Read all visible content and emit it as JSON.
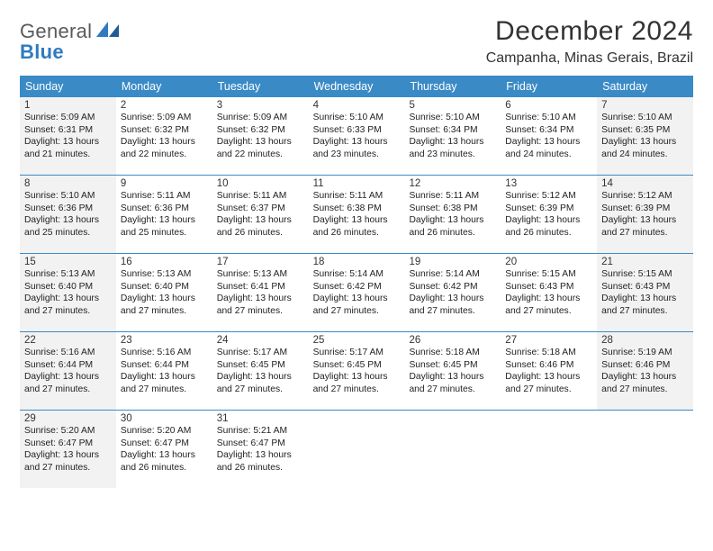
{
  "branding": {
    "logo_word1": "General",
    "logo_word2": "Blue",
    "logo_color_text": "#5a5a5a",
    "logo_color_accent": "#2f7bbf"
  },
  "header": {
    "month_title": "December 2024",
    "location": "Campanha, Minas Gerais, Brazil"
  },
  "styling": {
    "header_bg": "#3a8ac6",
    "header_text": "#ffffff",
    "row_divider": "#3a8ac6",
    "shade_bg": "#f2f2f2",
    "page_bg": "#ffffff",
    "body_text": "#222222",
    "daynum_text": "#333333",
    "title_fontsize": 30,
    "location_fontsize": 16,
    "dayhead_fontsize": 12.5,
    "cell_fontsize": 10.3
  },
  "day_headers": [
    "Sunday",
    "Monday",
    "Tuesday",
    "Wednesday",
    "Thursday",
    "Friday",
    "Saturday"
  ],
  "weeks": [
    [
      {
        "n": "1",
        "shade": true,
        "sr": "Sunrise: 5:09 AM",
        "ss": "Sunset: 6:31 PM",
        "d1": "Daylight: 13 hours",
        "d2": "and 21 minutes."
      },
      {
        "n": "2",
        "shade": false,
        "sr": "Sunrise: 5:09 AM",
        "ss": "Sunset: 6:32 PM",
        "d1": "Daylight: 13 hours",
        "d2": "and 22 minutes."
      },
      {
        "n": "3",
        "shade": false,
        "sr": "Sunrise: 5:09 AM",
        "ss": "Sunset: 6:32 PM",
        "d1": "Daylight: 13 hours",
        "d2": "and 22 minutes."
      },
      {
        "n": "4",
        "shade": false,
        "sr": "Sunrise: 5:10 AM",
        "ss": "Sunset: 6:33 PM",
        "d1": "Daylight: 13 hours",
        "d2": "and 23 minutes."
      },
      {
        "n": "5",
        "shade": false,
        "sr": "Sunrise: 5:10 AM",
        "ss": "Sunset: 6:34 PM",
        "d1": "Daylight: 13 hours",
        "d2": "and 23 minutes."
      },
      {
        "n": "6",
        "shade": false,
        "sr": "Sunrise: 5:10 AM",
        "ss": "Sunset: 6:34 PM",
        "d1": "Daylight: 13 hours",
        "d2": "and 24 minutes."
      },
      {
        "n": "7",
        "shade": true,
        "sr": "Sunrise: 5:10 AM",
        "ss": "Sunset: 6:35 PM",
        "d1": "Daylight: 13 hours",
        "d2": "and 24 minutes."
      }
    ],
    [
      {
        "n": "8",
        "shade": true,
        "sr": "Sunrise: 5:10 AM",
        "ss": "Sunset: 6:36 PM",
        "d1": "Daylight: 13 hours",
        "d2": "and 25 minutes."
      },
      {
        "n": "9",
        "shade": false,
        "sr": "Sunrise: 5:11 AM",
        "ss": "Sunset: 6:36 PM",
        "d1": "Daylight: 13 hours",
        "d2": "and 25 minutes."
      },
      {
        "n": "10",
        "shade": false,
        "sr": "Sunrise: 5:11 AM",
        "ss": "Sunset: 6:37 PM",
        "d1": "Daylight: 13 hours",
        "d2": "and 26 minutes."
      },
      {
        "n": "11",
        "shade": false,
        "sr": "Sunrise: 5:11 AM",
        "ss": "Sunset: 6:38 PM",
        "d1": "Daylight: 13 hours",
        "d2": "and 26 minutes."
      },
      {
        "n": "12",
        "shade": false,
        "sr": "Sunrise: 5:11 AM",
        "ss": "Sunset: 6:38 PM",
        "d1": "Daylight: 13 hours",
        "d2": "and 26 minutes."
      },
      {
        "n": "13",
        "shade": false,
        "sr": "Sunrise: 5:12 AM",
        "ss": "Sunset: 6:39 PM",
        "d1": "Daylight: 13 hours",
        "d2": "and 26 minutes."
      },
      {
        "n": "14",
        "shade": true,
        "sr": "Sunrise: 5:12 AM",
        "ss": "Sunset: 6:39 PM",
        "d1": "Daylight: 13 hours",
        "d2": "and 27 minutes."
      }
    ],
    [
      {
        "n": "15",
        "shade": true,
        "sr": "Sunrise: 5:13 AM",
        "ss": "Sunset: 6:40 PM",
        "d1": "Daylight: 13 hours",
        "d2": "and 27 minutes."
      },
      {
        "n": "16",
        "shade": false,
        "sr": "Sunrise: 5:13 AM",
        "ss": "Sunset: 6:40 PM",
        "d1": "Daylight: 13 hours",
        "d2": "and 27 minutes."
      },
      {
        "n": "17",
        "shade": false,
        "sr": "Sunrise: 5:13 AM",
        "ss": "Sunset: 6:41 PM",
        "d1": "Daylight: 13 hours",
        "d2": "and 27 minutes."
      },
      {
        "n": "18",
        "shade": false,
        "sr": "Sunrise: 5:14 AM",
        "ss": "Sunset: 6:42 PM",
        "d1": "Daylight: 13 hours",
        "d2": "and 27 minutes."
      },
      {
        "n": "19",
        "shade": false,
        "sr": "Sunrise: 5:14 AM",
        "ss": "Sunset: 6:42 PM",
        "d1": "Daylight: 13 hours",
        "d2": "and 27 minutes."
      },
      {
        "n": "20",
        "shade": false,
        "sr": "Sunrise: 5:15 AM",
        "ss": "Sunset: 6:43 PM",
        "d1": "Daylight: 13 hours",
        "d2": "and 27 minutes."
      },
      {
        "n": "21",
        "shade": true,
        "sr": "Sunrise: 5:15 AM",
        "ss": "Sunset: 6:43 PM",
        "d1": "Daylight: 13 hours",
        "d2": "and 27 minutes."
      }
    ],
    [
      {
        "n": "22",
        "shade": true,
        "sr": "Sunrise: 5:16 AM",
        "ss": "Sunset: 6:44 PM",
        "d1": "Daylight: 13 hours",
        "d2": "and 27 minutes."
      },
      {
        "n": "23",
        "shade": false,
        "sr": "Sunrise: 5:16 AM",
        "ss": "Sunset: 6:44 PM",
        "d1": "Daylight: 13 hours",
        "d2": "and 27 minutes."
      },
      {
        "n": "24",
        "shade": false,
        "sr": "Sunrise: 5:17 AM",
        "ss": "Sunset: 6:45 PM",
        "d1": "Daylight: 13 hours",
        "d2": "and 27 minutes."
      },
      {
        "n": "25",
        "shade": false,
        "sr": "Sunrise: 5:17 AM",
        "ss": "Sunset: 6:45 PM",
        "d1": "Daylight: 13 hours",
        "d2": "and 27 minutes."
      },
      {
        "n": "26",
        "shade": false,
        "sr": "Sunrise: 5:18 AM",
        "ss": "Sunset: 6:45 PM",
        "d1": "Daylight: 13 hours",
        "d2": "and 27 minutes."
      },
      {
        "n": "27",
        "shade": false,
        "sr": "Sunrise: 5:18 AM",
        "ss": "Sunset: 6:46 PM",
        "d1": "Daylight: 13 hours",
        "d2": "and 27 minutes."
      },
      {
        "n": "28",
        "shade": true,
        "sr": "Sunrise: 5:19 AM",
        "ss": "Sunset: 6:46 PM",
        "d1": "Daylight: 13 hours",
        "d2": "and 27 minutes."
      }
    ],
    [
      {
        "n": "29",
        "shade": true,
        "sr": "Sunrise: 5:20 AM",
        "ss": "Sunset: 6:47 PM",
        "d1": "Daylight: 13 hours",
        "d2": "and 27 minutes."
      },
      {
        "n": "30",
        "shade": false,
        "sr": "Sunrise: 5:20 AM",
        "ss": "Sunset: 6:47 PM",
        "d1": "Daylight: 13 hours",
        "d2": "and 26 minutes."
      },
      {
        "n": "31",
        "shade": false,
        "sr": "Sunrise: 5:21 AM",
        "ss": "Sunset: 6:47 PM",
        "d1": "Daylight: 13 hours",
        "d2": "and 26 minutes."
      },
      {
        "empty": true
      },
      {
        "empty": true
      },
      {
        "empty": true
      },
      {
        "empty": true
      }
    ]
  ]
}
